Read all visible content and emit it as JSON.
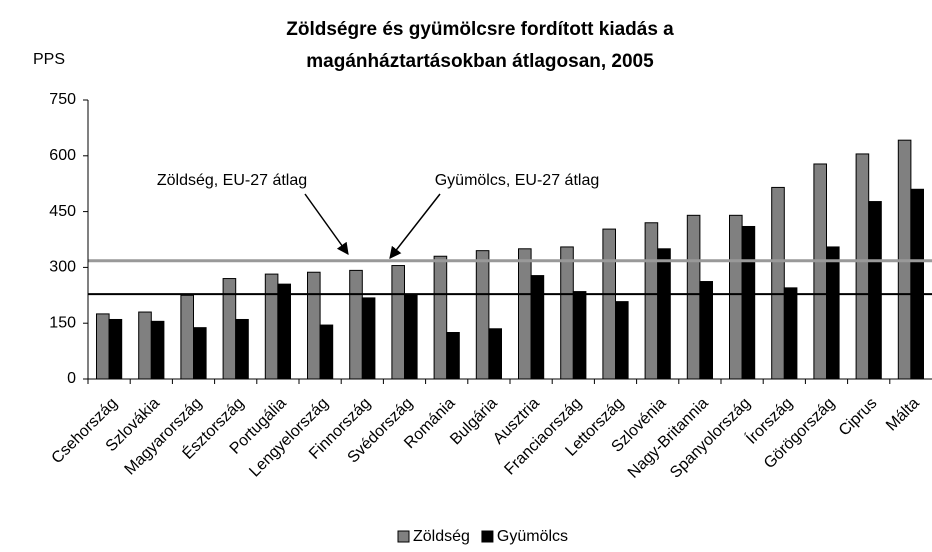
{
  "chart_data": {
    "type": "bar",
    "title": [
      "Zöldségre és gyümölcsre fordított kiadás a",
      "magánháztartásokban átlagosan, 2005"
    ],
    "y_label": "PPS",
    "categories": [
      "Csehország",
      "Szlovákia",
      "Magyarország",
      "Észtország",
      "Portugália",
      "Lengyelország",
      "Finnország",
      "Svédország",
      "Románia",
      "Bulgária",
      "Ausztria",
      "Franciaország",
      "Lettország",
      "Szlovénia",
      "Nagy-Britannia",
      "Spanyolország",
      "Írország",
      "Görögország",
      "Ciprus",
      "Málta"
    ],
    "series": [
      {
        "name": "Zöldség",
        "color": "#808080",
        "values": [
          175,
          180,
          225,
          270,
          282,
          287,
          292,
          305,
          330,
          345,
          350,
          355,
          403,
          420,
          440,
          440,
          515,
          578,
          605,
          642
        ]
      },
      {
        "name": "Gyümölcs",
        "color": "#000000",
        "values": [
          160,
          155,
          138,
          160,
          255,
          145,
          218,
          228,
          125,
          135,
          278,
          235,
          208,
          350,
          262,
          410,
          245,
          355,
          477,
          510
        ]
      }
    ],
    "reference_lines": [
      {
        "label": "Zöldség, EU-27 átlag",
        "value": 318,
        "color": "#999999"
      },
      {
        "label": "Gyümölcs, EU-27 átlag",
        "value": 228,
        "color": "#000000"
      }
    ],
    "ylim": [
      0,
      750
    ],
    "yticks": [
      0,
      150,
      300,
      450,
      600,
      750
    ],
    "grid": false,
    "legend": "bottom"
  }
}
